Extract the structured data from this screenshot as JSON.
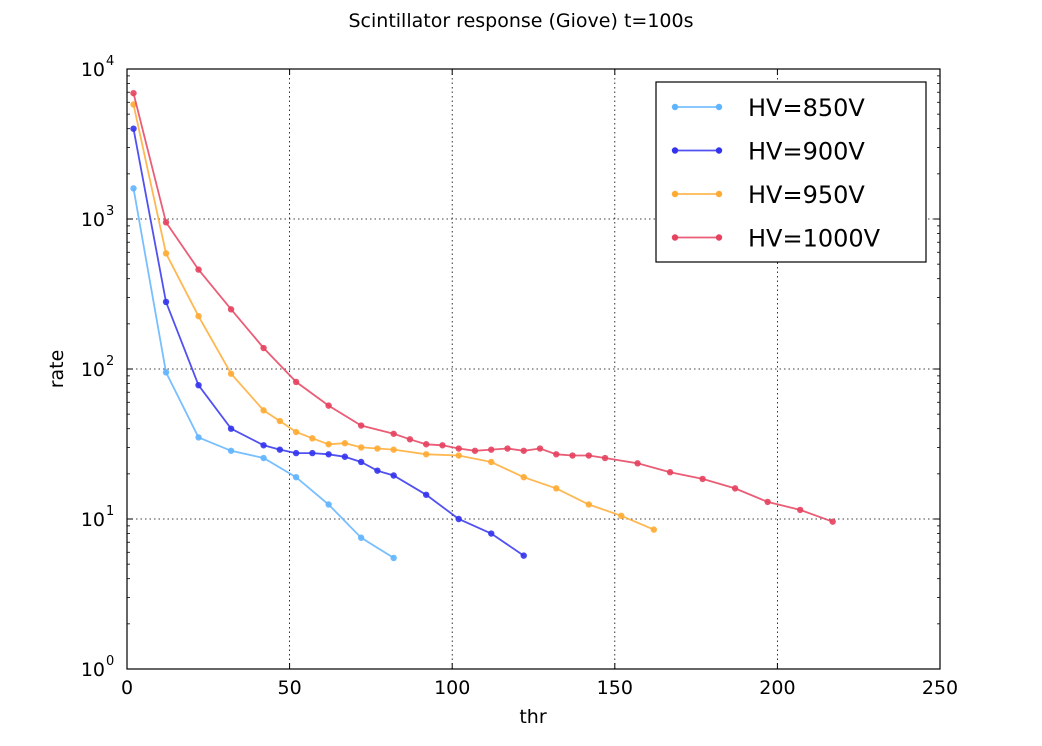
{
  "chart_data": {
    "type": "line",
    "title": "Scintillator response (Giove) t=100s",
    "xlabel": "thr",
    "ylabel": "rate",
    "xlim": [
      0,
      250
    ],
    "ylim": [
      1,
      10000
    ],
    "yscale": "log",
    "grid": true,
    "legend_position": "top-right",
    "x_ticks": [
      "0",
      "50",
      "100",
      "150",
      "200",
      "250"
    ],
    "y_ticks": [
      {
        "base": "10",
        "exp": "0"
      },
      {
        "base": "10",
        "exp": "1"
      },
      {
        "base": "10",
        "exp": "2"
      },
      {
        "base": "10",
        "exp": "3"
      },
      {
        "base": "10",
        "exp": "4"
      }
    ],
    "series": [
      {
        "name": "HV=850V",
        "color": "#5fb4ff",
        "x": [
          2,
          12,
          22,
          32,
          42,
          52,
          62,
          72,
          82
        ],
        "y": [
          1600,
          95,
          35,
          28.5,
          25.5,
          19,
          12.5,
          7.5,
          5.5
        ]
      },
      {
        "name": "HV=900V",
        "color": "#3333ee",
        "x": [
          2,
          12,
          22,
          32,
          42,
          47,
          52,
          57,
          62,
          67,
          72,
          77,
          82,
          92,
          102,
          112,
          122
        ],
        "y": [
          4000,
          280,
          78,
          40,
          31,
          29,
          27.5,
          27.5,
          27,
          26,
          24,
          21,
          19.5,
          14.5,
          10,
          8,
          5.7
        ]
      },
      {
        "name": "HV=950V",
        "color": "#ffab33",
        "x": [
          2,
          12,
          22,
          32,
          42,
          47,
          52,
          57,
          62,
          67,
          72,
          77,
          82,
          92,
          102,
          112,
          122,
          132,
          142,
          152,
          162
        ],
        "y": [
          5800,
          590,
          225,
          93,
          53,
          45,
          38,
          34.5,
          31.5,
          32,
          30,
          29.5,
          29,
          27,
          26.5,
          24,
          19,
          16,
          12.5,
          10.5,
          8.5
        ]
      },
      {
        "name": "HV=1000V",
        "color": "#e6415e",
        "x": [
          2,
          12,
          22,
          32,
          42,
          52,
          62,
          72,
          82,
          87,
          92,
          97,
          102,
          107,
          112,
          117,
          122,
          127,
          132,
          137,
          142,
          147,
          157,
          167,
          177,
          187,
          197,
          207,
          217
        ],
        "y": [
          6900,
          950,
          460,
          250,
          138,
          82,
          57,
          42,
          37,
          34,
          31.5,
          31,
          29.5,
          28.5,
          29,
          29.5,
          28.5,
          29.5,
          27,
          26.5,
          26.5,
          25.5,
          23.5,
          20.5,
          18.5,
          16,
          13,
          11.5,
          9.6
        ]
      }
    ]
  }
}
